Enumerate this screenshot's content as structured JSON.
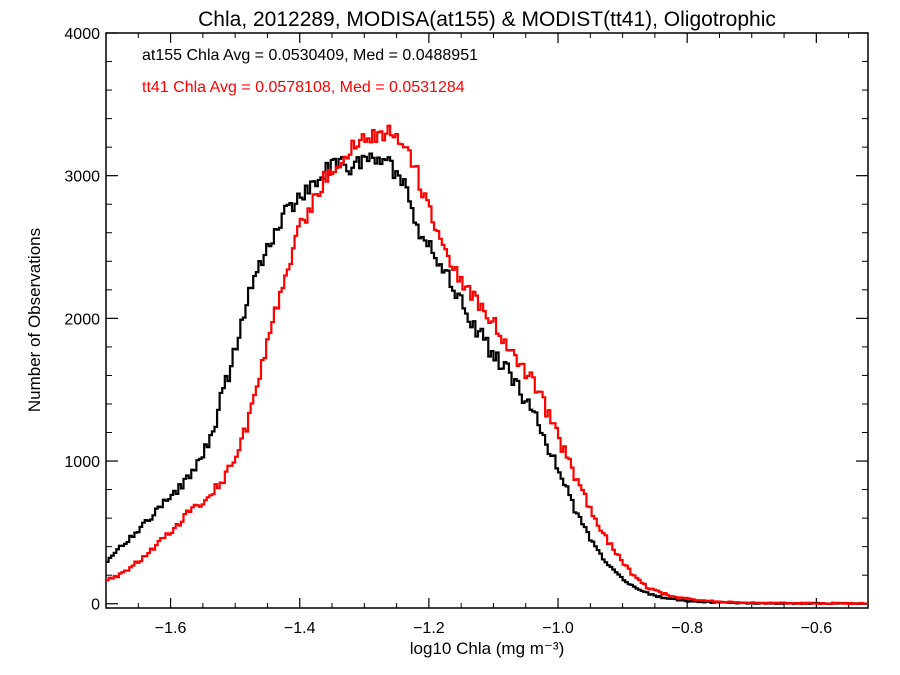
{
  "chart_data": {
    "type": "line",
    "title": "Chla, 2012289, MODISA(at155) & MODIST(tt41), Oligotrophic",
    "xlabel": "log10 Chla (mg m⁻³)",
    "ylabel": "Number of Observations",
    "xlim": [
      -1.7,
      -0.52
    ],
    "ylim": [
      -30,
      4000
    ],
    "x_ticks": [
      -1.6,
      -1.4,
      -1.2,
      -1.0,
      -0.8,
      -0.6
    ],
    "x_tick_labels": [
      "−1.6",
      "−1.4",
      "−1.2",
      "−1.0",
      "−0.8",
      "−0.6"
    ],
    "y_ticks": [
      0,
      1000,
      2000,
      3000,
      4000
    ],
    "y_tick_labels": [
      "0",
      "1000",
      "2000",
      "3000",
      "4000"
    ],
    "grid": false,
    "annotations": [
      {
        "text": "at155 Chla Avg = 0.0530409, Med = 0.0488951",
        "color": "#000000"
      },
      {
        "text": "tt41 Chla Avg = 0.0578108, Med = 0.0531284",
        "color": "#ff0000"
      }
    ],
    "series": [
      {
        "color": "#000000",
        "points": [
          [
            -1.7,
            280
          ],
          [
            -1.68,
            380
          ],
          [
            -1.66,
            470
          ],
          [
            -1.64,
            560
          ],
          [
            -1.62,
            650
          ],
          [
            -1.6,
            760
          ],
          [
            -1.58,
            830
          ],
          [
            -1.56,
            950
          ],
          [
            -1.54,
            1130
          ],
          [
            -1.52,
            1450
          ],
          [
            -1.5,
            1780
          ],
          [
            -1.48,
            2150
          ],
          [
            -1.46,
            2380
          ],
          [
            -1.44,
            2560
          ],
          [
            -1.42,
            2750
          ],
          [
            -1.4,
            2850
          ],
          [
            -1.38,
            2950
          ],
          [
            -1.36,
            3030
          ],
          [
            -1.34,
            3080
          ],
          [
            -1.32,
            3050
          ],
          [
            -1.3,
            3100
          ],
          [
            -1.28,
            3150
          ],
          [
            -1.26,
            3070
          ],
          [
            -1.24,
            2950
          ],
          [
            -1.22,
            2650
          ],
          [
            -1.2,
            2500
          ],
          [
            -1.18,
            2370
          ],
          [
            -1.16,
            2200
          ],
          [
            -1.14,
            2020
          ],
          [
            -1.12,
            1880
          ],
          [
            -1.1,
            1750
          ],
          [
            -1.08,
            1660
          ],
          [
            -1.06,
            1500
          ],
          [
            -1.04,
            1350
          ],
          [
            -1.02,
            1150
          ],
          [
            -1.0,
            950
          ],
          [
            -0.98,
            720
          ],
          [
            -0.96,
            540
          ],
          [
            -0.94,
            380
          ],
          [
            -0.92,
            260
          ],
          [
            -0.9,
            170
          ],
          [
            -0.88,
            110
          ],
          [
            -0.86,
            70
          ],
          [
            -0.84,
            45
          ],
          [
            -0.82,
            30
          ],
          [
            -0.8,
            20
          ],
          [
            -0.78,
            15
          ],
          [
            -0.76,
            10
          ],
          [
            -0.74,
            7
          ],
          [
            -0.72,
            5
          ],
          [
            -0.7,
            4
          ],
          [
            -0.65,
            3
          ],
          [
            -0.6,
            2
          ],
          [
            -0.55,
            1
          ],
          [
            -0.52,
            1
          ]
        ]
      },
      {
        "color": "#ff0000",
        "points": [
          [
            -1.7,
            170
          ],
          [
            -1.68,
            200
          ],
          [
            -1.66,
            260
          ],
          [
            -1.64,
            330
          ],
          [
            -1.62,
            420
          ],
          [
            -1.6,
            500
          ],
          [
            -1.58,
            600
          ],
          [
            -1.56,
            680
          ],
          [
            -1.54,
            760
          ],
          [
            -1.52,
            860
          ],
          [
            -1.5,
            1020
          ],
          [
            -1.48,
            1270
          ],
          [
            -1.46,
            1610
          ],
          [
            -1.44,
            2000
          ],
          [
            -1.42,
            2350
          ],
          [
            -1.4,
            2620
          ],
          [
            -1.38,
            2800
          ],
          [
            -1.36,
            3000
          ],
          [
            -1.34,
            3100
          ],
          [
            -1.32,
            3200
          ],
          [
            -1.3,
            3250
          ],
          [
            -1.28,
            3280
          ],
          [
            -1.26,
            3300
          ],
          [
            -1.24,
            3250
          ],
          [
            -1.22,
            3050
          ],
          [
            -1.2,
            2750
          ],
          [
            -1.18,
            2500
          ],
          [
            -1.16,
            2330
          ],
          [
            -1.14,
            2220
          ],
          [
            -1.12,
            2100
          ],
          [
            -1.1,
            1960
          ],
          [
            -1.08,
            1820
          ],
          [
            -1.06,
            1660
          ],
          [
            -1.04,
            1580
          ],
          [
            -1.02,
            1380
          ],
          [
            -1.0,
            1180
          ],
          [
            -0.98,
            950
          ],
          [
            -0.96,
            760
          ],
          [
            -0.94,
            560
          ],
          [
            -0.92,
            420
          ],
          [
            -0.9,
            290
          ],
          [
            -0.88,
            180
          ],
          [
            -0.86,
            110
          ],
          [
            -0.84,
            75
          ],
          [
            -0.82,
            50
          ],
          [
            -0.8,
            35
          ],
          [
            -0.78,
            25
          ],
          [
            -0.76,
            18
          ],
          [
            -0.74,
            12
          ],
          [
            -0.72,
            8
          ],
          [
            -0.7,
            6
          ],
          [
            -0.65,
            4
          ],
          [
            -0.6,
            3
          ],
          [
            -0.55,
            2
          ],
          [
            -0.52,
            2
          ]
        ]
      }
    ]
  }
}
